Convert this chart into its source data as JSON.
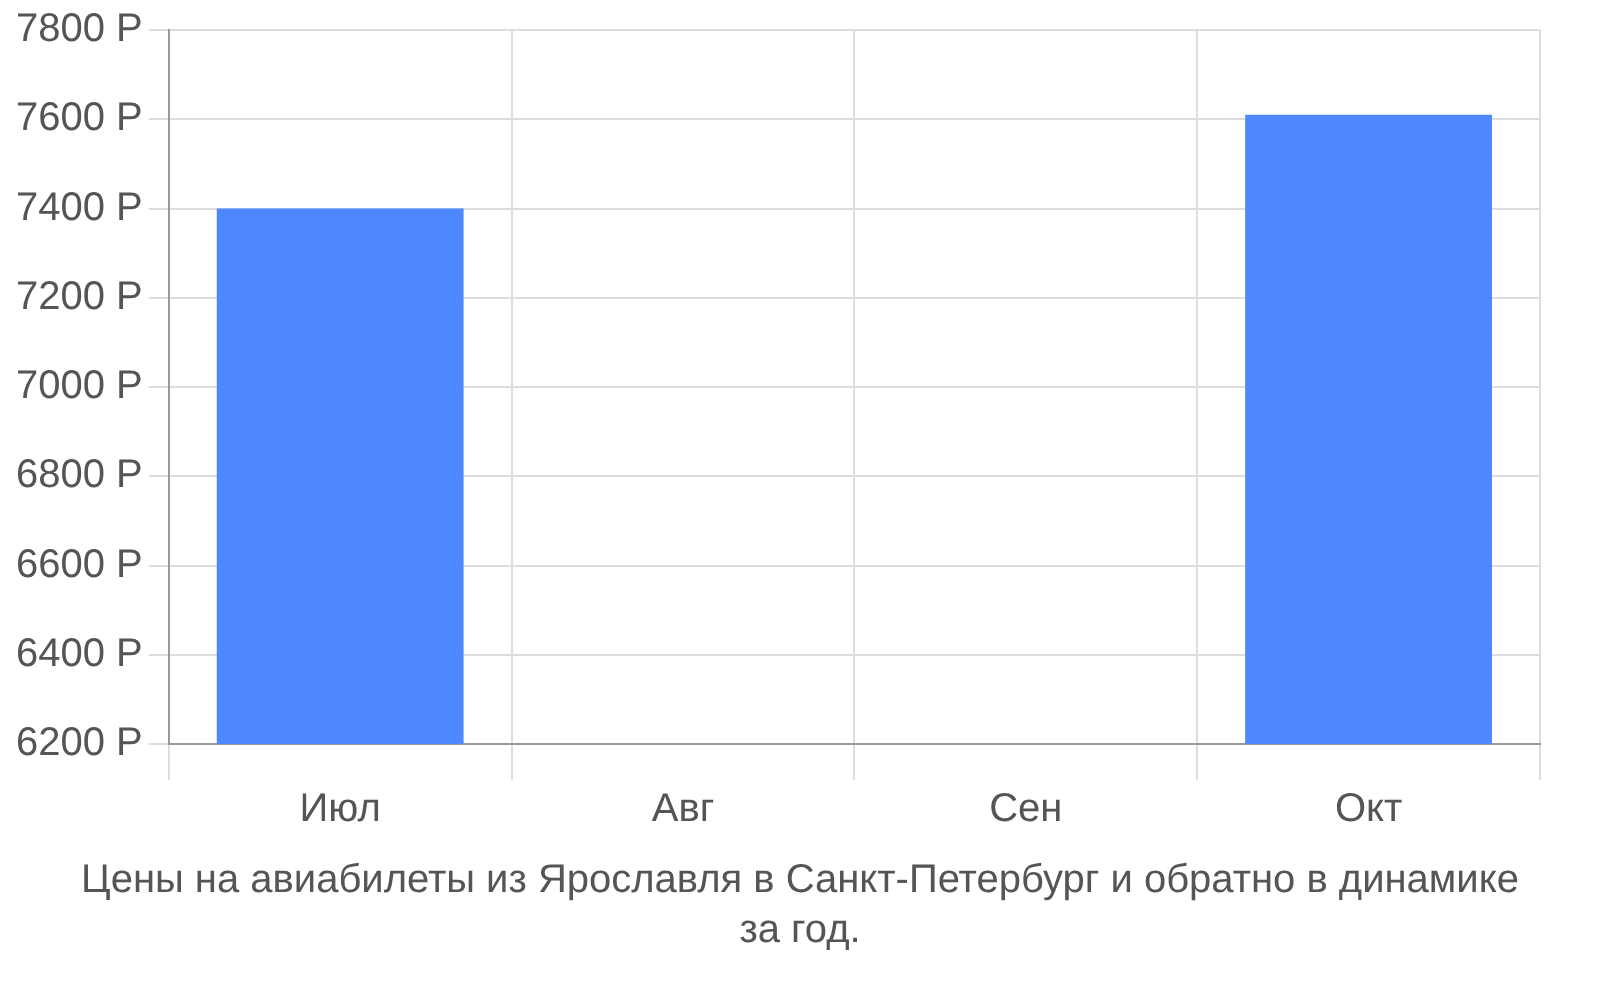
{
  "chart_data": {
    "type": "bar",
    "categories": [
      "Июл",
      "Авг",
      "Сен",
      "Окт"
    ],
    "values": [
      7400,
      null,
      null,
      7610
    ],
    "color": "#4d88ff",
    "ylim": [
      6200,
      7800
    ],
    "yticks": [
      {
        "value": 6200,
        "label": "6200 Р"
      },
      {
        "value": 6400,
        "label": "6400 Р"
      },
      {
        "value": 6600,
        "label": "6600 Р"
      },
      {
        "value": 6800,
        "label": "6800 Р"
      },
      {
        "value": 7000,
        "label": "7000 Р"
      },
      {
        "value": 7200,
        "label": "7200 Р"
      },
      {
        "value": 7400,
        "label": "7400 Р"
      },
      {
        "value": 7600,
        "label": "7600 Р"
      },
      {
        "value": 7800,
        "label": "7800 Р"
      }
    ],
    "grid": true,
    "legend": false,
    "annotations": [
      "Цены на авиабилеты из Ярославля в Санкт-Петербург и обратно в динамике за год."
    ]
  }
}
